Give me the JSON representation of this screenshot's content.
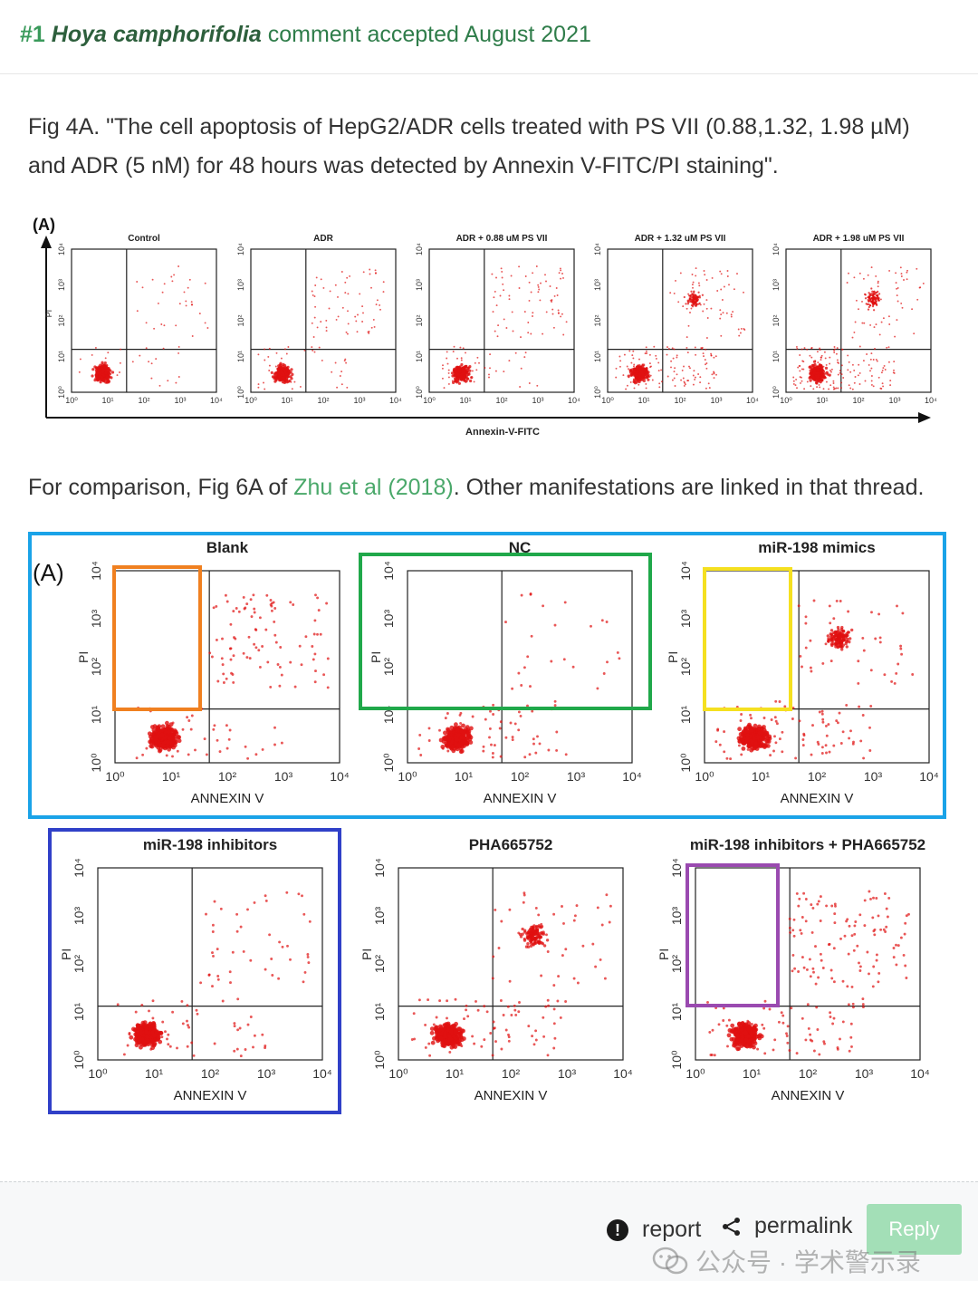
{
  "header": {
    "number": "#1",
    "species": "Hoya camphorifolia",
    "status": "comment accepted August 2021"
  },
  "paragraph1": "Fig 4A. \"The cell apoptosis of HepG2/ADR cells treated with PS VII (0.88,1.32, 1.98 µM) and ADR (5 nM) for 48 hours was detected by Annexin V-FITC/PI staining\".",
  "figureA": {
    "panel_label": "(A)",
    "yaxis_label": "PI",
    "xaxis_label": "Annexin-V-FITC",
    "tick_labels": [
      "10⁰",
      "10¹",
      "10²",
      "10³",
      "10⁴"
    ],
    "panels": [
      "Control",
      "ADR",
      "ADR + 0.88 uM PS VII",
      "ADR + 1.32 uM PS VII",
      "ADR + 1.98 uM PS VII"
    ]
  },
  "paragraph2": {
    "before": "For comparison, Fig 6A of ",
    "link": "Zhu et al (2018)",
    "after": ". Other manifestations are linked in that thread."
  },
  "figureB": {
    "panel_label": "(A)",
    "yaxis_label": "PI",
    "xaxis_label": "ANNEXIN V",
    "tick_labels": [
      "10⁰",
      "10¹",
      "10²",
      "10³",
      "10⁴"
    ],
    "panels": [
      "Blank",
      "NC",
      "miR-198 mimics",
      "miR-198 inhibitors",
      "PHA665752",
      "miR-198 inhibitors + PHA665752"
    ]
  },
  "footer": {
    "report": "report",
    "permalink": "permalink",
    "reply": "Reply"
  },
  "watermark": "公众号 · 学术警示录",
  "colors": {
    "accent_green": "#3a9a5b",
    "link_green": "#4aa86a",
    "reply_bg": "#a3dfb7",
    "dots_red": "#e01010",
    "box_cyan": "#1aa3e8",
    "box_orange": "#f08020",
    "box_green": "#20a84a",
    "box_yellow": "#f5e020",
    "box_blue": "#3040c8",
    "box_purple": "#9a4ab0"
  }
}
